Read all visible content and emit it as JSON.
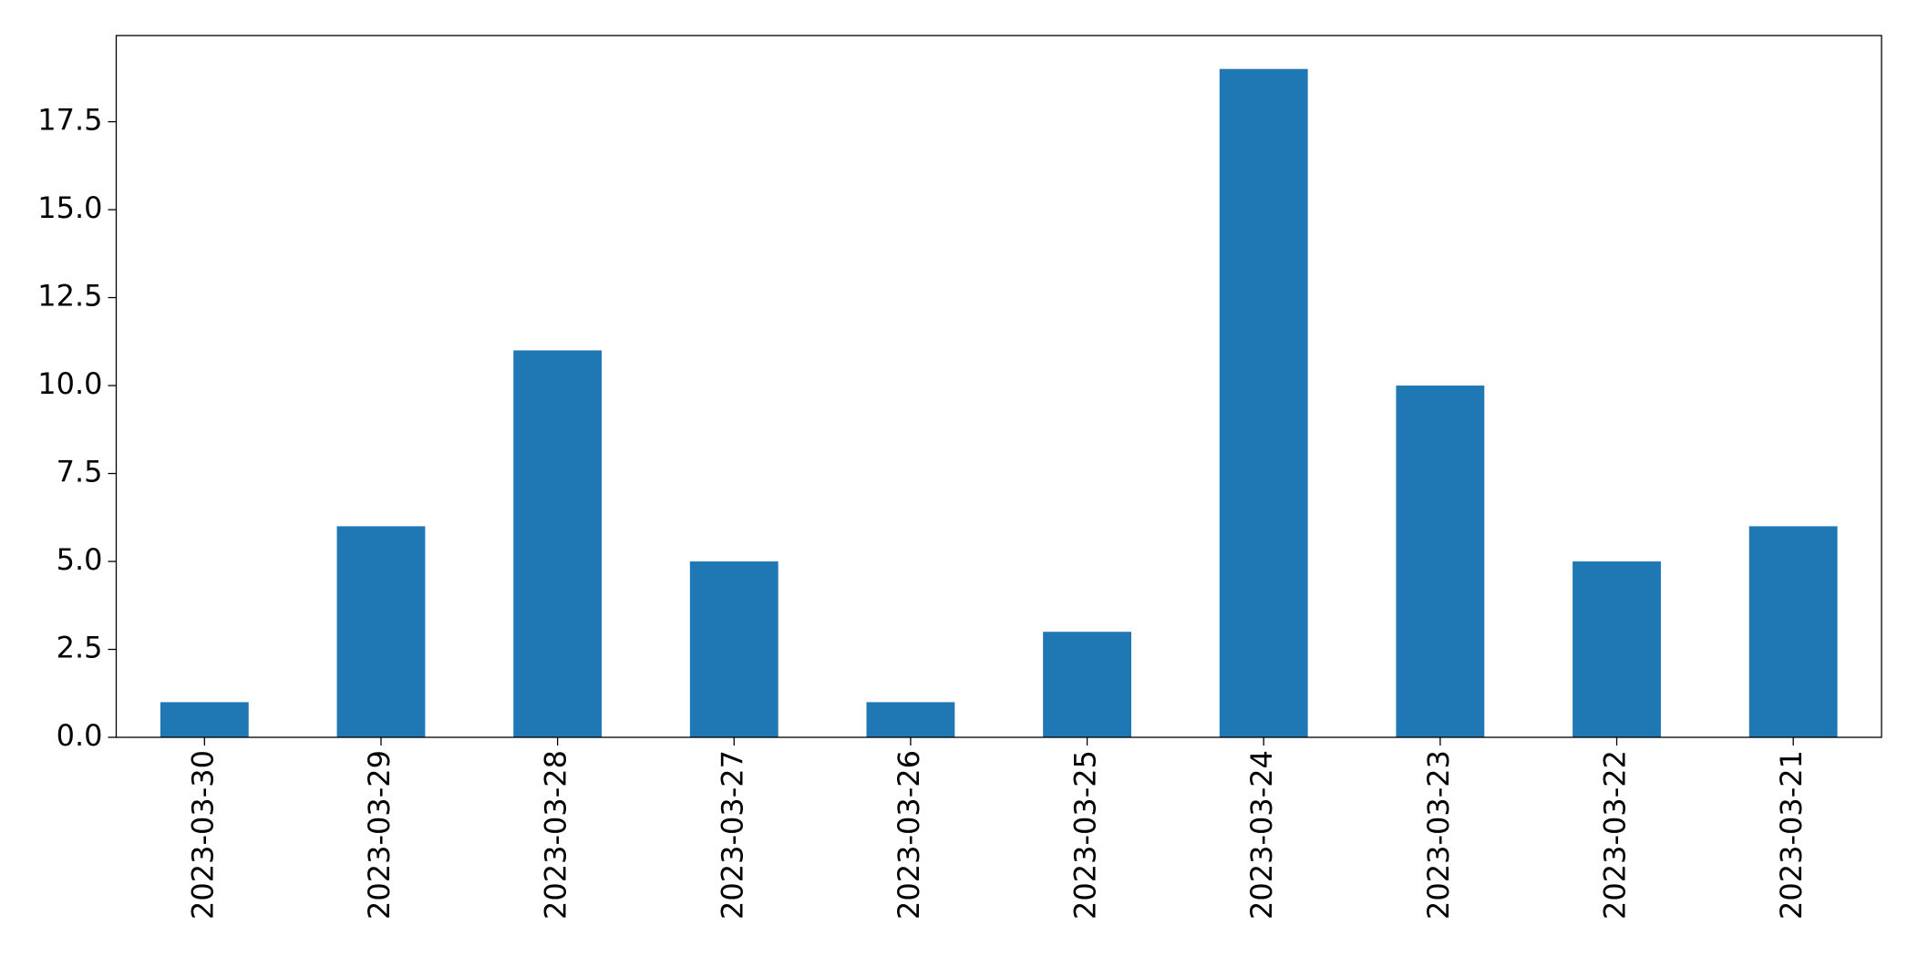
{
  "chart_data": {
    "type": "bar",
    "categories": [
      "2023-03-30",
      "2023-03-29",
      "2023-03-28",
      "2023-03-27",
      "2023-03-26",
      "2023-03-25",
      "2023-03-24",
      "2023-03-23",
      "2023-03-22",
      "2023-03-21"
    ],
    "values": [
      1,
      6,
      11,
      5,
      1,
      3,
      19,
      10,
      5,
      6
    ],
    "color": "#1f77b4",
    "ylim": [
      0,
      19.95
    ],
    "yticks": [
      {
        "value": 0,
        "label": "0.0"
      },
      2.5,
      {
        "value": 5,
        "label": "5.0"
      },
      7.5,
      {
        "value": 10,
        "label": "10.0"
      },
      12.5,
      {
        "value": 15,
        "label": "15.0"
      },
      17.5
    ],
    "grid": false
  }
}
